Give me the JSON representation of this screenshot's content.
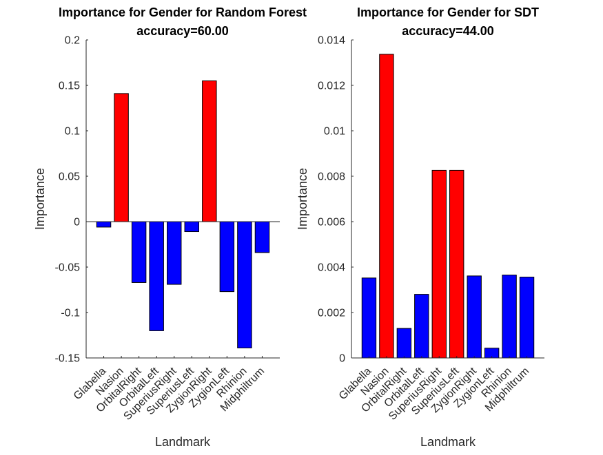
{
  "chart_data": [
    {
      "type": "bar",
      "title": "Importance for Gender for Random Forest",
      "subtitle": "accuracy=60.00",
      "xlabel": "Landmark",
      "ylabel": "Importance",
      "categories": [
        "Glabella",
        "Nasion",
        "OrbitalRight",
        "OrbitalLeft",
        "SuperiusRight",
        "SuperiusLeft",
        "ZygionRight",
        "ZygionLeft",
        "Rhinion",
        "Midphiltrum"
      ],
      "values": [
        -0.006,
        0.141,
        -0.067,
        -0.12,
        -0.069,
        -0.011,
        0.155,
        -0.077,
        -0.139,
        -0.034
      ],
      "bar_colors": [
        "#0000ff",
        "#ff0000",
        "#0000ff",
        "#0000ff",
        "#0000ff",
        "#0000ff",
        "#ff0000",
        "#0000ff",
        "#0000ff",
        "#0000ff"
      ],
      "ylim": [
        -0.15,
        0.2
      ],
      "yticks": [
        -0.15,
        -0.1,
        -0.05,
        0,
        0.05,
        0.1,
        0.15,
        0.2
      ],
      "ytick_labels": [
        "-0.15",
        "-0.1",
        "-0.05",
        "0",
        "0.05",
        "0.1",
        "0.15",
        "0.2"
      ],
      "grid": false
    },
    {
      "type": "bar",
      "title": "Importance for Gender for SDT",
      "subtitle": "accuracy=44.00",
      "xlabel": "Landmark",
      "ylabel": "Importance",
      "categories": [
        "Glabella",
        "Nasion",
        "OrbitalRight",
        "OrbitalLeft",
        "SuperiusRight",
        "SuperiusLeft",
        "ZygionRight",
        "ZygionLeft",
        "Rhinion",
        "Midphiltrum"
      ],
      "values": [
        0.00352,
        0.01337,
        0.0013,
        0.0028,
        0.00826,
        0.00826,
        0.00361,
        0.00043,
        0.00365,
        0.00356
      ],
      "bar_colors": [
        "#0000ff",
        "#ff0000",
        "#0000ff",
        "#0000ff",
        "#ff0000",
        "#ff0000",
        "#0000ff",
        "#0000ff",
        "#0000ff",
        "#0000ff"
      ],
      "ylim": [
        0,
        0.014
      ],
      "yticks": [
        0,
        0.002,
        0.004,
        0.006,
        0.008,
        0.01,
        0.012,
        0.014
      ],
      "ytick_labels": [
        "0",
        "0.002",
        "0.004",
        "0.006",
        "0.008",
        "0.01",
        "0.012",
        "0.014"
      ],
      "grid": false
    }
  ]
}
